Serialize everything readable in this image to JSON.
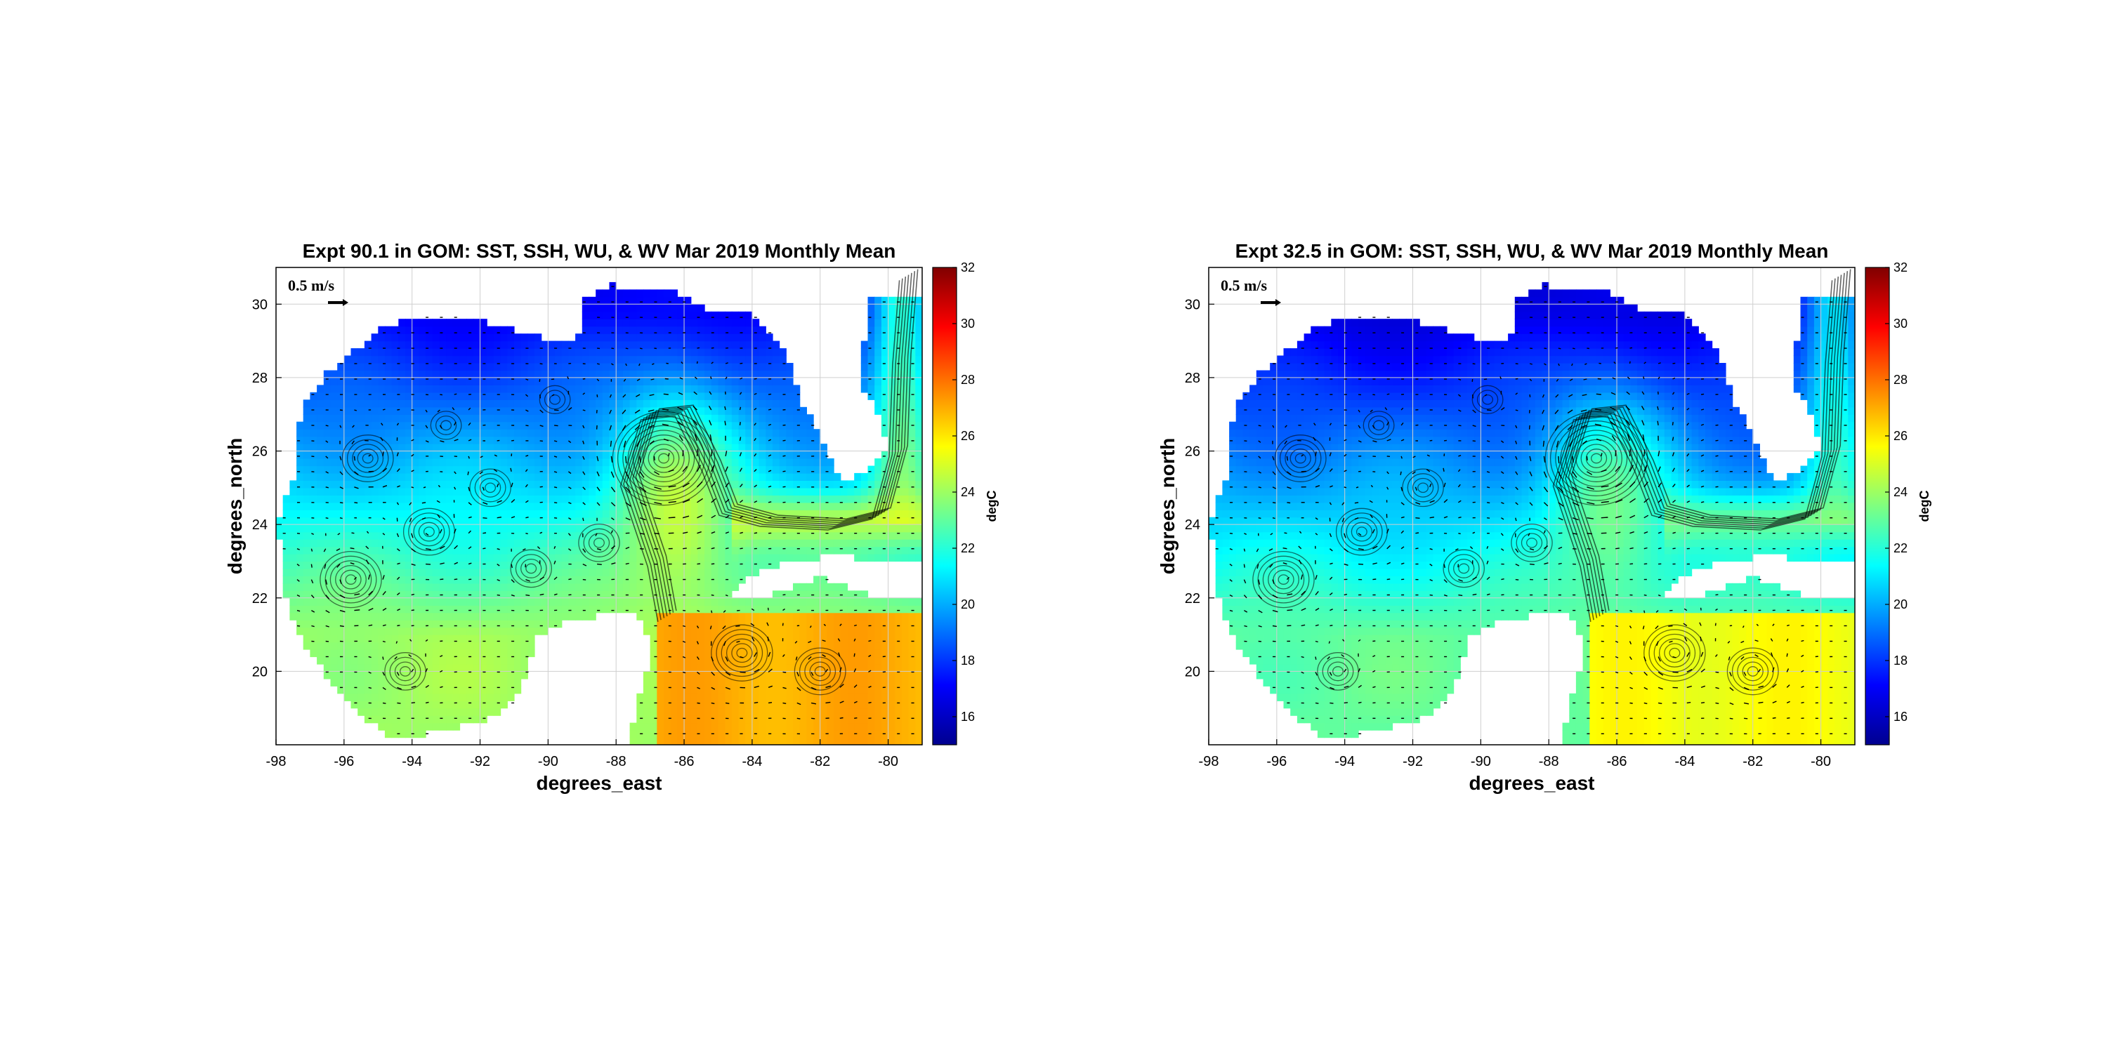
{
  "chart_data": [
    {
      "type": "heatmap",
      "title": "Expt 90.1 in GOM: SST, SSH, WU, & WV Mar 2019 Monthly Mean",
      "xlabel": "degrees_east",
      "ylabel": "degrees_north",
      "xlim": [
        -98,
        -79
      ],
      "ylim": [
        18,
        31
      ],
      "xticks": [
        -98,
        -96,
        -94,
        -92,
        -90,
        -88,
        -86,
        -84,
        -82,
        -80
      ],
      "yticks": [
        20,
        22,
        24,
        26,
        28,
        30
      ],
      "grid": true,
      "colorbar": {
        "label": "degC",
        "range": [
          15,
          32
        ],
        "ticks": [
          16,
          18,
          20,
          22,
          24,
          26,
          28,
          30,
          32
        ],
        "colormap": "jet"
      },
      "reference_vector": "0.5 m/s",
      "sst_trend": {
        "north_coast": 17,
        "central": 22.5,
        "south_west": 24,
        "loop_current": 25.5,
        "caribbean": 27
      }
    },
    {
      "type": "heatmap",
      "title": "Expt 32.5 in GOM: SST, SSH, WU, & WV Mar 2019 Monthly Mean",
      "xlabel": "degrees_east",
      "ylabel": "degrees_north",
      "xlim": [
        -98,
        -79
      ],
      "ylim": [
        18,
        31
      ],
      "xticks": [
        -98,
        -96,
        -94,
        -92,
        -90,
        -88,
        -86,
        -84,
        -82,
        -80
      ],
      "yticks": [
        20,
        22,
        24,
        26,
        28,
        30
      ],
      "grid": true,
      "colorbar": {
        "label": "degC",
        "range": [
          15,
          32
        ],
        "ticks": [
          16,
          18,
          20,
          22,
          24,
          26,
          28,
          30,
          32
        ],
        "colormap": "jet"
      },
      "reference_vector": "0.5 m/s",
      "sst_trend": {
        "north_coast": 16.5,
        "central": 21.5,
        "south_west": 23,
        "loop_current": 24,
        "caribbean": 25.5
      }
    }
  ]
}
